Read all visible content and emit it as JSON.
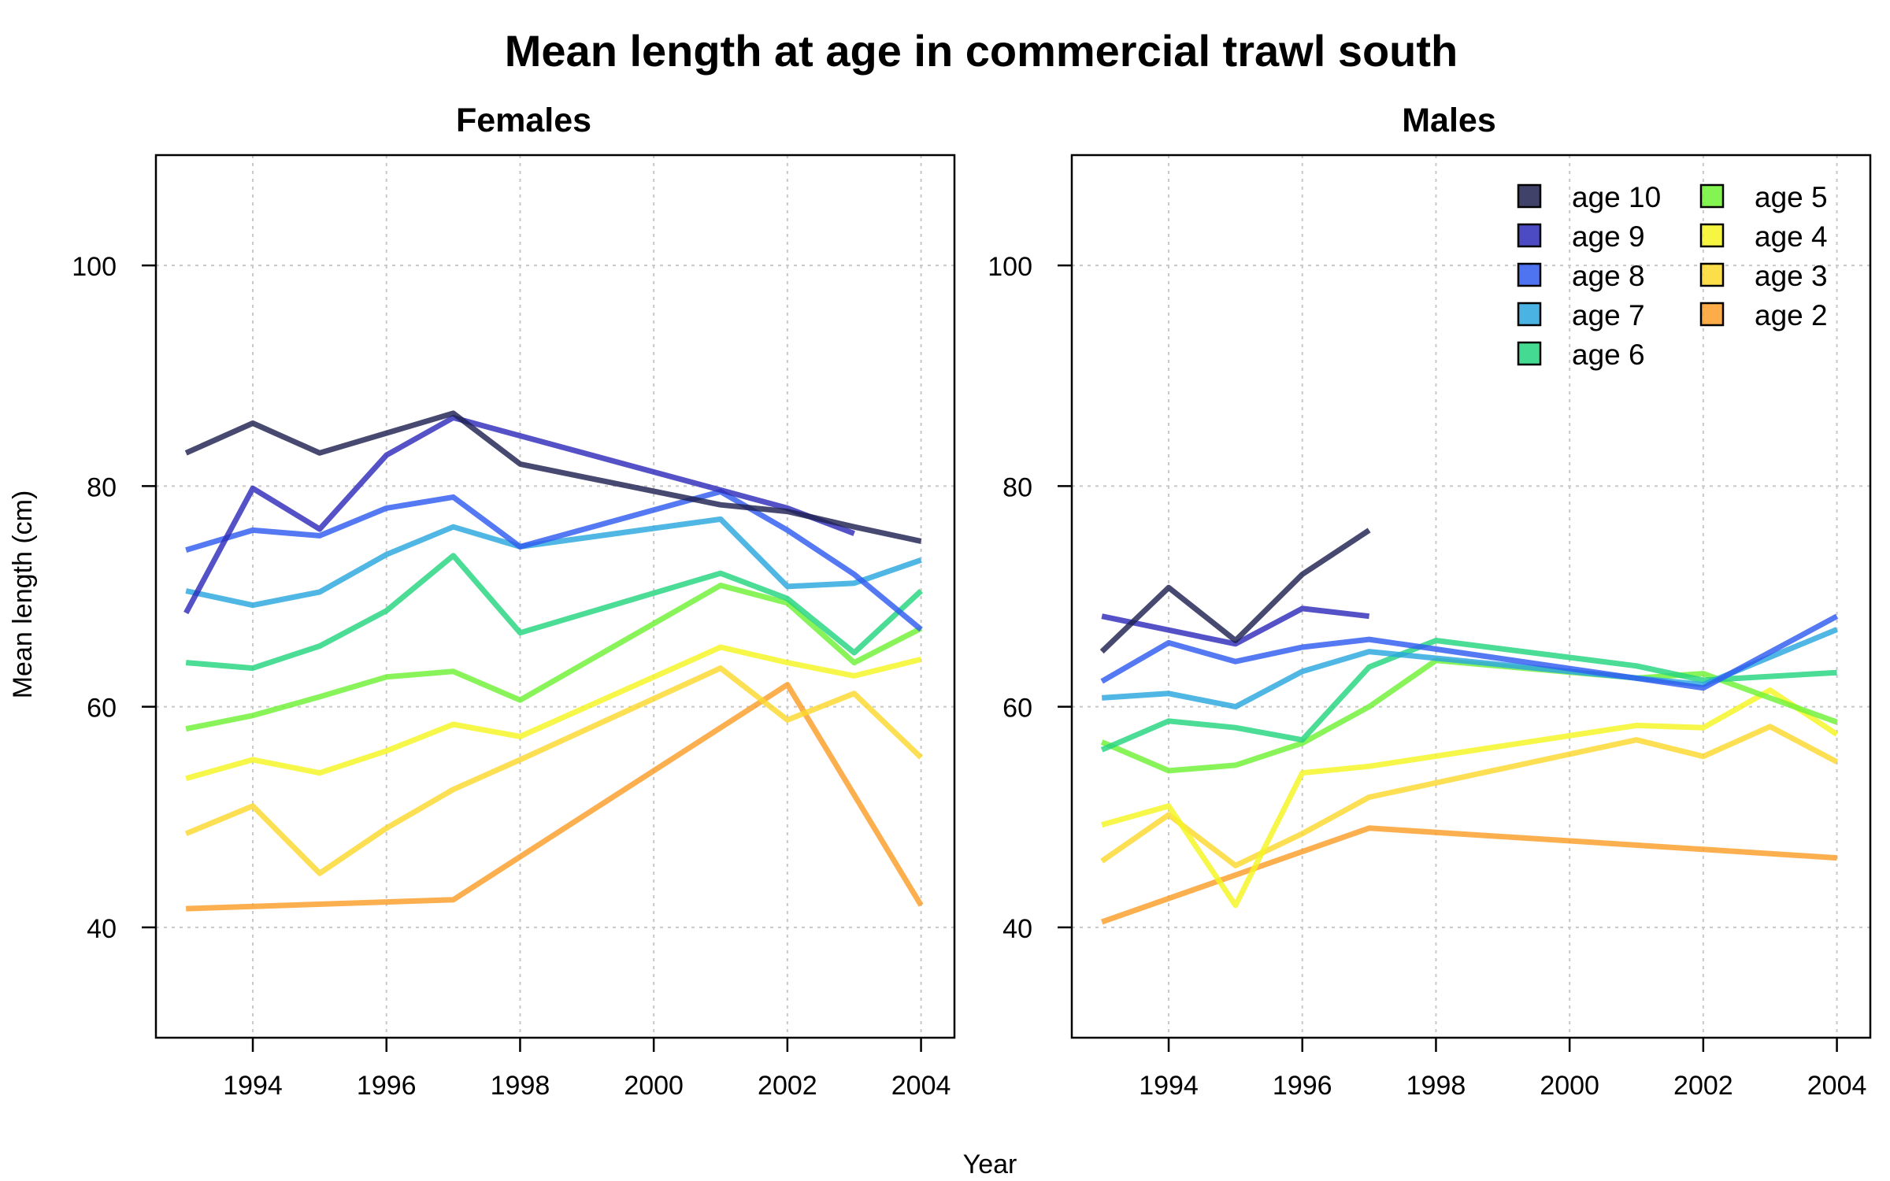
{
  "title": "Mean length at age in commercial trawl south",
  "xlabel": "Year",
  "ylabel": "Mean length (cm)",
  "chart_data": [
    {
      "type": "line",
      "title": "Females",
      "xlim": [
        1992.55,
        2004.5
      ],
      "ylim": [
        30,
        110
      ],
      "xticks": [
        1994,
        1996,
        1998,
        2000,
        2002,
        2004
      ],
      "yticks": [
        40,
        60,
        80,
        100
      ],
      "grid": true,
      "series": [
        {
          "name": "age 10",
          "color": "#1f2150",
          "x": [
            1993,
            1994,
            1995,
            1996,
            1997,
            1998,
            2001,
            2002,
            2003,
            2004
          ],
          "y": [
            83,
            85.7,
            83,
            84.8,
            86.6,
            82,
            78.3,
            77.7,
            76.3,
            75
          ]
        },
        {
          "name": "age 9",
          "color": "#2e2cba",
          "x": [
            1993,
            1994,
            1995,
            1996,
            1997,
            2002,
            2003
          ],
          "y": [
            68.5,
            79.8,
            76.1,
            82.8,
            86.2,
            78,
            75.7
          ]
        },
        {
          "name": "age 8",
          "color": "#2f5cf0",
          "x": [
            1993,
            1994,
            1995,
            1996,
            1997,
            1998,
            2001,
            2002,
            2003,
            2004
          ],
          "y": [
            74.2,
            76,
            75.5,
            78,
            79,
            74.5,
            79.5,
            76,
            72,
            67
          ]
        },
        {
          "name": "age 7",
          "color": "#2aa6de",
          "x": [
            1993,
            1994,
            1995,
            1996,
            1997,
            1998,
            2001,
            2002,
            2003,
            2004
          ],
          "y": [
            70.5,
            69.2,
            70.4,
            73.8,
            76.3,
            74.5,
            77,
            70.9,
            71.2,
            73.3
          ]
        },
        {
          "name": "age 6",
          "color": "#23d47e",
          "x": [
            1993,
            1994,
            1995,
            1996,
            1997,
            1998,
            2001,
            2002,
            2003,
            2004
          ],
          "y": [
            64,
            63.5,
            65.5,
            68.7,
            73.7,
            66.7,
            72.1,
            69.8,
            64.9,
            70.5
          ]
        },
        {
          "name": "age 5",
          "color": "#6ff234",
          "x": [
            1993,
            1994,
            1995,
            1996,
            1997,
            1998,
            2001,
            2002,
            2003,
            2004
          ],
          "y": [
            58,
            59.2,
            60.9,
            62.7,
            63.2,
            60.6,
            71,
            69.4,
            64,
            67.1
          ]
        },
        {
          "name": "age 4",
          "color": "#f4f521",
          "x": [
            1993,
            1994,
            1995,
            1996,
            1997,
            1998,
            2001,
            2002,
            2003,
            2004
          ],
          "y": [
            53.5,
            55.2,
            54,
            56,
            58.4,
            57.3,
            65.4,
            64,
            62.8,
            64.3
          ]
        },
        {
          "name": "age 3",
          "color": "#fbd82c",
          "x": [
            1993,
            1994,
            1995,
            1996,
            1997,
            1998,
            2001,
            2002,
            2003,
            2004
          ],
          "y": [
            48.5,
            51,
            44.9,
            49,
            52.5,
            55.2,
            63.5,
            58.8,
            61.2,
            55.4
          ]
        },
        {
          "name": "age 2",
          "color": "#fb9e28",
          "x": [
            1993,
            1997,
            2002,
            2004
          ],
          "y": [
            41.7,
            42.5,
            62,
            42
          ]
        }
      ]
    },
    {
      "type": "line",
      "title": "Males",
      "xlim": [
        1992.55,
        2004.5
      ],
      "ylim": [
        30,
        110
      ],
      "xticks": [
        1994,
        1996,
        1998,
        2000,
        2002,
        2004
      ],
      "yticks": [
        40,
        60,
        80,
        100
      ],
      "grid": true,
      "legend": "top-right",
      "series": [
        {
          "name": "age 10",
          "color": "#1f2150",
          "x": [
            1993,
            1994,
            1995,
            1996,
            1997
          ],
          "y": [
            65,
            70.8,
            66,
            72,
            76
          ]
        },
        {
          "name": "age 9",
          "color": "#2e2cba",
          "x": [
            1993,
            1995,
            1996,
            1997
          ],
          "y": [
            68.2,
            65.7,
            68.9,
            68.2
          ]
        },
        {
          "name": "age 8",
          "color": "#2f5cf0",
          "x": [
            1993,
            1994,
            1995,
            1996,
            1997,
            2002,
            2004
          ],
          "y": [
            62.3,
            65.8,
            64.1,
            65.4,
            66.1,
            61.7,
            68.2
          ]
        },
        {
          "name": "age 7",
          "color": "#2aa6de",
          "x": [
            1993,
            1994,
            1995,
            1996,
            1997,
            2002,
            2004
          ],
          "y": [
            60.8,
            61.2,
            60,
            63.2,
            65,
            62,
            67
          ]
        },
        {
          "name": "age 6",
          "color": "#23d47e",
          "x": [
            1993,
            1994,
            1995,
            1996,
            1997,
            1998,
            2001,
            2002,
            2004
          ],
          "y": [
            56.1,
            58.7,
            58.1,
            57,
            63.6,
            66,
            63.7,
            62.4,
            63.1
          ]
        },
        {
          "name": "age 5",
          "color": "#6ff234",
          "x": [
            1993,
            1994,
            1995,
            1996,
            1997,
            1998,
            2001,
            2002,
            2003,
            2004
          ],
          "y": [
            56.8,
            54.2,
            54.7,
            56.7,
            60,
            64.2,
            62.6,
            63,
            60.8,
            58.6
          ]
        },
        {
          "name": "age 4",
          "color": "#f4f521",
          "x": [
            1993,
            1994,
            1995,
            1996,
            1997,
            2001,
            2002,
            2003,
            2004
          ],
          "y": [
            49.3,
            51,
            42,
            54,
            54.6,
            58.3,
            58.1,
            61.5,
            57.5
          ]
        },
        {
          "name": "age 3",
          "color": "#fbd82c",
          "x": [
            1993,
            1994,
            1995,
            1996,
            1997,
            2001,
            2002,
            2003,
            2004
          ],
          "y": [
            46,
            50.2,
            45.6,
            48.5,
            51.8,
            57,
            55.5,
            58.2,
            55
          ]
        },
        {
          "name": "age 2",
          "color": "#fb9e28",
          "x": [
            1993,
            1997,
            2004
          ],
          "y": [
            40.5,
            49,
            46.3
          ]
        }
      ]
    }
  ]
}
